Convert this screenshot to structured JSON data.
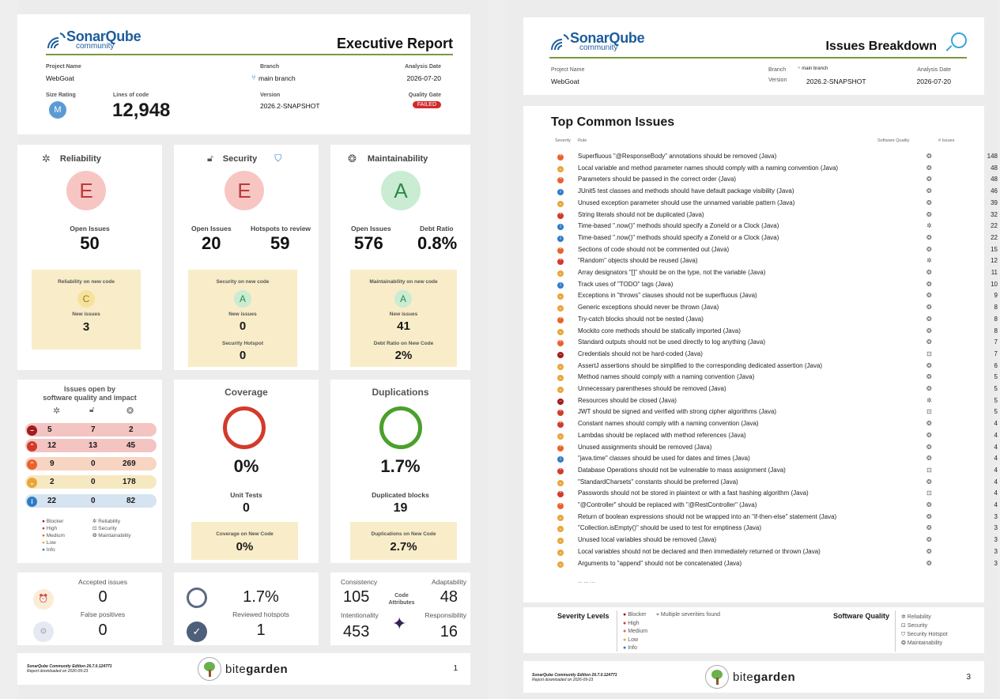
{
  "page1": {
    "brand": {
      "name": "SonarQube",
      "edition": "community"
    },
    "title": "Executive Report",
    "project": {
      "name_label": "Project Name",
      "name": "WebGoat",
      "branch_label": "Branch",
      "branch": "main branch",
      "date_label": "Analysis Date",
      "date": "2026-07-20",
      "size_label": "Size Rating",
      "size": "M",
      "loc_label": "Lines of code",
      "loc": "12,948",
      "version_label": "Version",
      "version": "2026.2-SNAPSHOT",
      "gate_label": "Quality Gate",
      "gate": "FAILED"
    },
    "reliability": {
      "title": "Reliability",
      "grade": "E",
      "open_label": "Open Issues",
      "open": "50",
      "new_title": "Reliability on new code",
      "new_grade": "C",
      "new_label": "New issues",
      "new": "3"
    },
    "security": {
      "title": "Security",
      "grade": "E",
      "open_label": "Open Issues",
      "open": "20",
      "hot_label": "Hotspots to review",
      "hot": "59",
      "new_title": "Security on new code",
      "new_grade": "A",
      "new_label": "New issues",
      "new": "0",
      "hs_label": "Security Hotspot",
      "hs": "0"
    },
    "maintain": {
      "title": "Maintainability",
      "grade": "A",
      "open_label": "Open Issues",
      "open": "576",
      "debt_label": "Debt Ratio",
      "debt": "0.8%",
      "new_title": "Maintainability on new code",
      "new_grade": "A",
      "new_label": "New issues",
      "new": "41",
      "ndebt_label": "Debt Ratio on New Code",
      "ndebt": "2%"
    },
    "impact": {
      "title1": "Issues open by",
      "title2": "software quality and impact",
      "rows": [
        {
          "r": "5",
          "s": "7",
          "m": "2"
        },
        {
          "r": "12",
          "s": "13",
          "m": "45"
        },
        {
          "r": "9",
          "s": "0",
          "m": "269"
        },
        {
          "r": "2",
          "s": "0",
          "m": "178"
        },
        {
          "r": "22",
          "s": "0",
          "m": "82"
        }
      ],
      "legend_sev": [
        "Blocker",
        "High",
        "Medium",
        "Low",
        "Info"
      ],
      "legend_q": [
        "Reliability",
        "Security",
        "Maintainability"
      ]
    },
    "coverage": {
      "title": "Coverage",
      "value": "0%",
      "ut_label": "Unit Tests",
      "ut": "0",
      "new_label": "Coverage on New Code",
      "new": "0%"
    },
    "dup": {
      "title": "Duplications",
      "value": "1.7%",
      "blk_label": "Duplicated blocks",
      "blk": "19",
      "new_label": "Duplications on New Code",
      "new": "2.7%"
    },
    "accepted": {
      "acc_label": "Accepted issues",
      "acc": "0",
      "fp_label": "False positives",
      "fp": "0"
    },
    "hotspots": {
      "pct": "1.7%",
      "rev_label": "Reviewed hotspots",
      "rev": "1"
    },
    "attrs": {
      "cons_label": "Consistency",
      "cons": "105",
      "adapt_label": "Adaptability",
      "adapt": "48",
      "mid": "Code Attributes",
      "int_label": "Intentionality",
      "int": "453",
      "resp_label": "Responsibility",
      "resp": "16"
    },
    "footer": {
      "edition": "SonarQube Community Edition 26.7.0.124771",
      "dl": "Report downloaded on 2026-09-23",
      "bite": "bite",
      "garden": "garden",
      "page": "1"
    }
  },
  "page2": {
    "brand": {
      "name": "SonarQube",
      "edition": "community"
    },
    "title": "Issues Breakdown",
    "project": {
      "name_label": "Project Name",
      "name": "WebGoat",
      "branch_label": "Branch",
      "branch": "main branch",
      "version_label": "Version",
      "version": "2026.2-SNAPSHOT",
      "date_label": "Analysis Date",
      "date": "2026-07-20"
    },
    "top_title": "Top Common Issues",
    "cols": {
      "sev": "Severity",
      "rule": "Rule",
      "q": "Software Quality",
      "n": "# Issues"
    },
    "issues": [
      {
        "sev": "med",
        "rule": "Superfluous \"@ResponseBody\" annotations should be removed (Java)",
        "q": "maintain",
        "n": "148"
      },
      {
        "sev": "low",
        "rule": "Local variable and method parameter names should comply with a naming convention (Java)",
        "q": "maintain",
        "n": "48"
      },
      {
        "sev": "med",
        "rule": "Parameters should be passed in the correct order (Java)",
        "q": "maintain",
        "n": "48"
      },
      {
        "sev": "info",
        "rule": "JUnit5 test classes and methods should have default package visibility (Java)",
        "q": "maintain",
        "n": "46"
      },
      {
        "sev": "low",
        "rule": "Unused exception parameter should use the unnamed variable pattern (Java)",
        "q": "maintain",
        "n": "39"
      },
      {
        "sev": "hi",
        "rule": "String literals should not be duplicated (Java)",
        "q": "maintain",
        "n": "32"
      },
      {
        "sev": "info",
        "rule": "Time-based \".now()\" methods should specify a ZoneId or a Clock (Java)",
        "q": "rel",
        "n": "22"
      },
      {
        "sev": "info",
        "rule": "Time-based \".now()\" methods should specify a ZoneId or a Clock (Java)",
        "q": "maintain",
        "n": "22"
      },
      {
        "sev": "med",
        "rule": "Sections of code should not be commented out (Java)",
        "q": "maintain",
        "n": "15"
      },
      {
        "sev": "hi",
        "rule": "\"Random\" objects should be reused (Java)",
        "q": "rel",
        "n": "12"
      },
      {
        "sev": "low",
        "rule": "Array designators \"[]\" should be on the type, not the variable (Java)",
        "q": "maintain",
        "n": "11"
      },
      {
        "sev": "info",
        "rule": "Track uses of \"TODO\" tags (Java)",
        "q": "maintain",
        "n": "10"
      },
      {
        "sev": "low",
        "rule": "Exceptions in \"throws\" clauses should not be superfluous (Java)",
        "q": "maintain",
        "n": "9"
      },
      {
        "sev": "low",
        "rule": "Generic exceptions should never be thrown (Java)",
        "q": "maintain",
        "n": "8"
      },
      {
        "sev": "med",
        "rule": "Try-catch blocks should not be nested (Java)",
        "q": "maintain",
        "n": "8"
      },
      {
        "sev": "low",
        "rule": "Mockito core methods should be statically imported (Java)",
        "q": "maintain",
        "n": "8"
      },
      {
        "sev": "med",
        "rule": "Standard outputs should not be used directly to log anything (Java)",
        "q": "maintain",
        "n": "7"
      },
      {
        "sev": "blk",
        "rule": "Credentials should not be hard-coded (Java)",
        "q": "sec",
        "n": "7"
      },
      {
        "sev": "low",
        "rule": "AssertJ assertions should be simplified to the corresponding dedicated assertion (Java)",
        "q": "maintain",
        "n": "6"
      },
      {
        "sev": "low",
        "rule": "Method names should comply with a naming convention (Java)",
        "q": "maintain",
        "n": "5"
      },
      {
        "sev": "low",
        "rule": "Unnecessary parentheses should be removed (Java)",
        "q": "maintain",
        "n": "5"
      },
      {
        "sev": "blk",
        "rule": "Resources should be closed (Java)",
        "q": "rel",
        "n": "5"
      },
      {
        "sev": "hi",
        "rule": "JWT should be signed and verified with strong cipher algorithms (Java)",
        "q": "sec",
        "n": "5"
      },
      {
        "sev": "hi",
        "rule": "Constant names should comply with a naming convention (Java)",
        "q": "maintain",
        "n": "4"
      },
      {
        "sev": "low",
        "rule": "Lambdas should be replaced with method references (Java)",
        "q": "maintain",
        "n": "4"
      },
      {
        "sev": "med",
        "rule": "Unused assignments should be removed (Java)",
        "q": "maintain",
        "n": "4"
      },
      {
        "sev": "info",
        "rule": "\"java.time\" classes should be used for dates and times (Java)",
        "q": "maintain",
        "n": "4"
      },
      {
        "sev": "hi",
        "rule": "Database Operations should not be vulnerable to mass assignment (Java)",
        "q": "sec",
        "n": "4"
      },
      {
        "sev": "low",
        "rule": "\"StandardCharsets\" constants should be preferred (Java)",
        "q": "maintain",
        "n": "4"
      },
      {
        "sev": "hi",
        "rule": "Passwords should not be stored in plaintext or with a fast hashing algorithm (Java)",
        "q": "sec",
        "n": "4"
      },
      {
        "sev": "med",
        "rule": "\"@Controller\" should be replaced with \"@RestController\" (Java)",
        "q": "maintain",
        "n": "4"
      },
      {
        "sev": "low",
        "rule": "Return of boolean expressions should not be wrapped into an \"if-then-else\" statement (Java)",
        "q": "maintain",
        "n": "3"
      },
      {
        "sev": "low",
        "rule": "\"Collection.isEmpty()\" should be used to test for emptiness (Java)",
        "q": "maintain",
        "n": "3"
      },
      {
        "sev": "low",
        "rule": "Unused local variables should be removed (Java)",
        "q": "maintain",
        "n": "3"
      },
      {
        "sev": "low",
        "rule": "Local variables should not be declared and then immediately returned or thrown (Java)",
        "q": "maintain",
        "n": "3"
      },
      {
        "sev": "low",
        "rule": "Arguments to \"append\" should not be concatenated (Java)",
        "q": "maintain",
        "n": "3"
      }
    ],
    "ellipsis": "... ... ...",
    "legend": {
      "sev_title": "Severity Levels",
      "sev": [
        "Blocker",
        "High",
        "Medium",
        "Low",
        "Info"
      ],
      "multi": "Multiple severities found",
      "q_title": "Software Quality",
      "q": [
        "Reliability",
        "Security",
        "Security Hotspot",
        "Maintainability"
      ]
    },
    "footer": {
      "edition": "SonarQube Community Edition 26.7.0.124771",
      "dl": "Report downloaded on 2026-09-23",
      "bite": "bite",
      "garden": "garden",
      "page": "3"
    }
  },
  "colors": {
    "blocker": "#a11d1d",
    "high": "#d33a2c",
    "medium": "#e8632f",
    "low": "#e8a63a",
    "info": "#2f7bc6",
    "grade_e": "#f7c6c3",
    "grade_a": "#c9ecd3",
    "grade_c": "#f7e29b",
    "new_code_bg": "#f8edc8"
  }
}
